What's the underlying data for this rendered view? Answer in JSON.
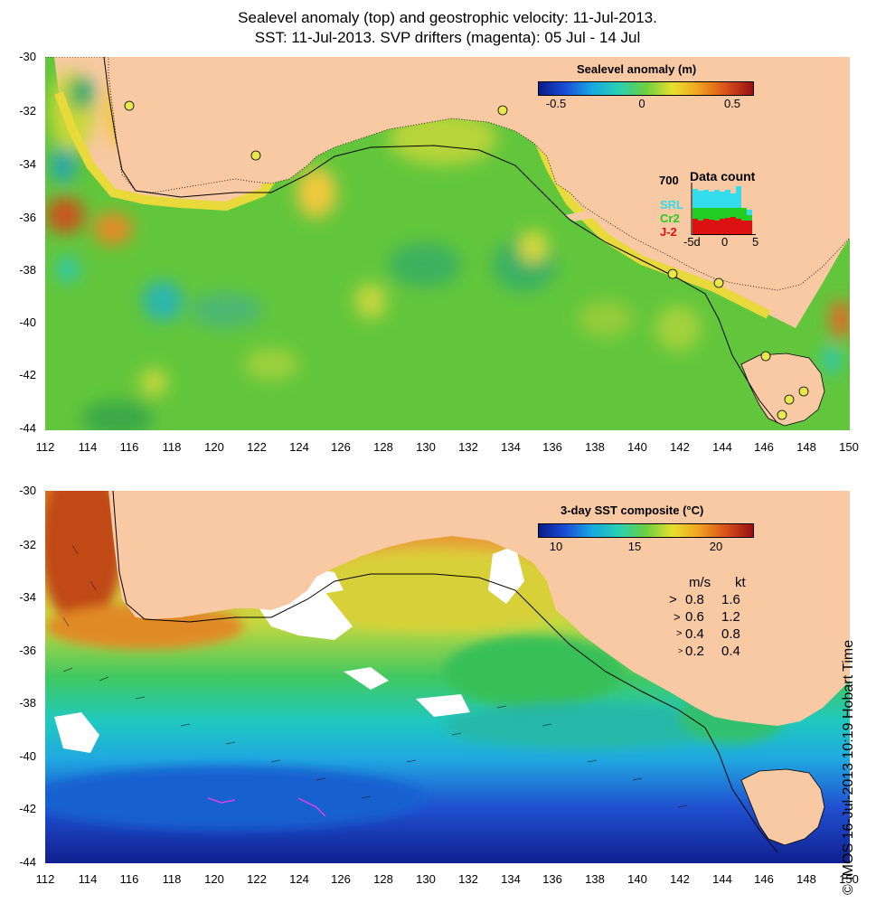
{
  "title_line1": "Sealevel anomaly (top) and geostrophic velocity: 11-Jul-2013.",
  "title_line2": "SST: 11-Jul-2013. SVP drifters (magenta): 05 Jul - 14 Jul",
  "axes": {
    "lat_labels": [
      "-30",
      "-32",
      "-34",
      "-36",
      "-38",
      "-40",
      "-42",
      "-44"
    ],
    "lon_labels": [
      "112",
      "114",
      "116",
      "118",
      "120",
      "122",
      "124",
      "126",
      "128",
      "130",
      "132",
      "134",
      "136",
      "138",
      "140",
      "142",
      "144",
      "146",
      "148",
      "150"
    ]
  },
  "top_panel": {
    "colorbar_title": "Sealevel anomaly (m)",
    "colorbar_ticks": [
      "-0.5",
      "0",
      "0.5"
    ],
    "data_count": {
      "title": "Data count",
      "ymax_label": "700",
      "series": [
        {
          "name": "SRL",
          "color": "#33ddee"
        },
        {
          "name": "Cr2",
          "color": "#22cc22"
        },
        {
          "name": "J-2",
          "color": "#dd1111"
        }
      ],
      "x_labels": [
        "-5d",
        "0",
        "5"
      ]
    }
  },
  "bottom_panel": {
    "colorbar_title": "3-day SST composite (°C)",
    "colorbar_ticks": [
      "10",
      "15",
      "20"
    ],
    "velocity_legend": {
      "header_ms": "m/s",
      "header_kt": "kt",
      "rows": [
        {
          "ms": "0.8",
          "kt": "1.6"
        },
        {
          "ms": "0.6",
          "kt": "1.2"
        },
        {
          "ms": "0.4",
          "kt": "0.8"
        },
        {
          "ms": "0.2",
          "kt": "0.4"
        }
      ]
    }
  },
  "credit": "© IMOS 16-Jul-2013 10:19 Hobart Time"
}
